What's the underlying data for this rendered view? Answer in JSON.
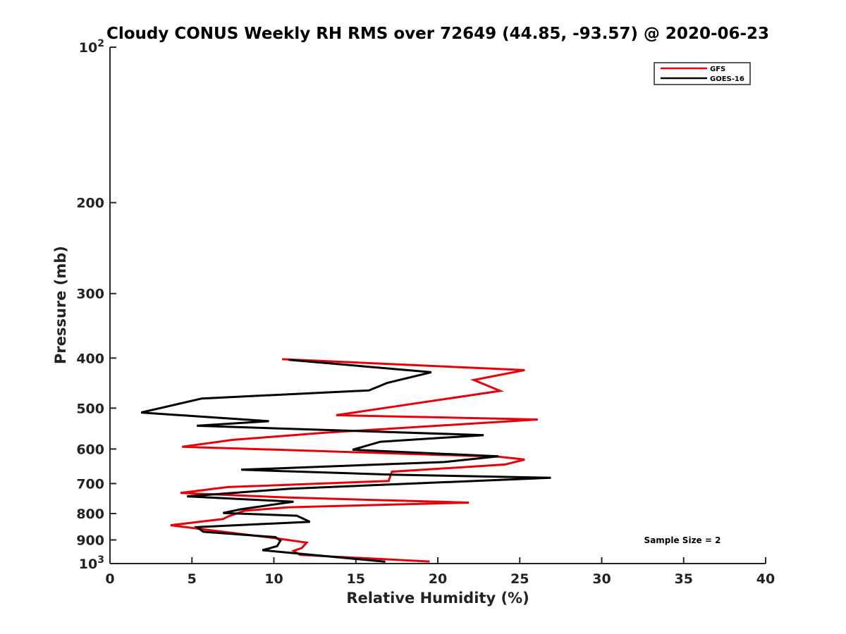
{
  "chart_data": {
    "type": "line",
    "title": "Cloudy CONUS Weekly RH RMS over 72649 (44.85, -93.57) @ 2020-06-23",
    "xlabel": "Relative Humidity (%)",
    "ylabel": "Pressure (mb)",
    "xlim": [
      0,
      40
    ],
    "ylim": [
      100,
      1000
    ],
    "y_scale": "log",
    "y_reversed": true,
    "x_ticks": [
      "0",
      "5",
      "10",
      "15",
      "20",
      "25",
      "30",
      "35",
      "40"
    ],
    "y_ticks": [
      {
        "value": 100,
        "base": "10",
        "exp": "2"
      },
      {
        "value": 200,
        "label": "200"
      },
      {
        "value": 300,
        "label": "300"
      },
      {
        "value": 400,
        "label": "400"
      },
      {
        "value": 500,
        "label": "500"
      },
      {
        "value": 600,
        "label": "600"
      },
      {
        "value": 700,
        "label": "700"
      },
      {
        "value": 800,
        "label": "800"
      },
      {
        "value": 900,
        "label": "900"
      },
      {
        "value": 1000,
        "base": "10",
        "exp": "3"
      }
    ],
    "legend_position": "top-right",
    "annotation": "Sample Size = 2",
    "series": [
      {
        "name": "GFS",
        "color": "#e8000b",
        "points": [
          [
            10.5,
            402
          ],
          [
            25.3,
            422
          ],
          [
            22.2,
            441
          ],
          [
            23.8,
            463
          ],
          [
            13.8,
            516
          ],
          [
            26.1,
            526
          ],
          [
            13.1,
            558
          ],
          [
            7.5,
            576
          ],
          [
            4.4,
            594
          ],
          [
            23.7,
            621
          ],
          [
            25.3,
            629
          ],
          [
            24.1,
            643
          ],
          [
            17.2,
            664
          ],
          [
            17.0,
            692
          ],
          [
            7.2,
            711
          ],
          [
            4.3,
            730
          ],
          [
            10.9,
            745
          ],
          [
            21.9,
            762
          ],
          [
            10.9,
            778
          ],
          [
            8.2,
            790
          ],
          [
            7.2,
            811
          ],
          [
            6.9,
            820
          ],
          [
            3.7,
            843
          ],
          [
            7.2,
            870
          ],
          [
            10.1,
            893
          ],
          [
            12.0,
            911
          ],
          [
            11.7,
            933
          ],
          [
            11.2,
            945
          ],
          [
            11.6,
            962
          ],
          [
            19.5,
            991
          ]
        ]
      },
      {
        "name": "GOES-16",
        "color": "#000000",
        "points": [
          [
            10.9,
            403
          ],
          [
            19.6,
            426
          ],
          [
            16.9,
            447
          ],
          [
            15.8,
            462
          ],
          [
            5.6,
            479
          ],
          [
            1.9,
            510
          ],
          [
            9.7,
            530
          ],
          [
            5.3,
            541
          ],
          [
            22.8,
            564
          ],
          [
            16.5,
            581
          ],
          [
            14.8,
            602
          ],
          [
            23.7,
            620
          ],
          [
            20.4,
            636
          ],
          [
            8.0,
            658
          ],
          [
            17.3,
            673
          ],
          [
            26.9,
            682
          ],
          [
            11.0,
            716
          ],
          [
            4.7,
            741
          ],
          [
            11.2,
            759
          ],
          [
            8.0,
            785
          ],
          [
            6.9,
            798
          ],
          [
            11.4,
            808
          ],
          [
            12.2,
            830
          ],
          [
            5.3,
            850
          ],
          [
            5.7,
            868
          ],
          [
            10.1,
            889
          ],
          [
            10.4,
            903
          ],
          [
            10.2,
            925
          ],
          [
            9.7,
            935
          ],
          [
            9.3,
            942
          ],
          [
            16.8,
            992
          ]
        ]
      }
    ]
  }
}
